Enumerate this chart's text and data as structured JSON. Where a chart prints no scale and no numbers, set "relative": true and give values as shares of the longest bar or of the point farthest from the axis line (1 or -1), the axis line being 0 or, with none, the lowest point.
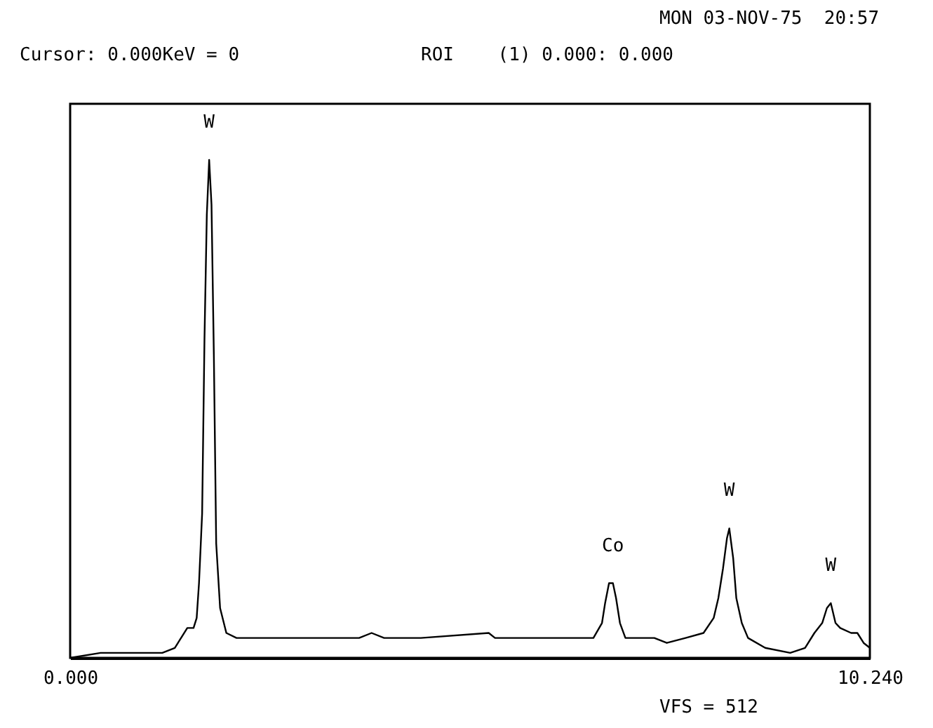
{
  "chart_data": {
    "type": "line",
    "relative": true,
    "x": [
      0,
      0.39,
      0.87,
      1.18,
      1.34,
      1.42,
      1.5,
      1.58,
      1.62,
      1.65,
      1.69,
      1.72,
      1.75,
      1.78,
      1.81,
      1.84,
      1.87,
      1.92,
      2.0,
      2.13,
      2.91,
      3.7,
      3.86,
      4.02,
      4.49,
      5.36,
      5.44,
      5.75,
      6.54,
      6.7,
      6.81,
      6.85,
      6.9,
      6.95,
      6.99,
      7.04,
      7.11,
      7.33,
      7.48,
      7.64,
      7.88,
      8.11,
      8.24,
      8.3,
      8.36,
      8.41,
      8.44,
      8.49,
      8.53,
      8.6,
      8.68,
      8.9,
      9.22,
      9.41,
      9.53,
      9.63,
      9.69,
      9.74,
      9.8,
      9.86,
      10.0,
      10.08,
      10.16,
      10.24
    ],
    "series": [
      {
        "color": "#000000",
        "values": [
          0,
          0.01,
          0.01,
          0.01,
          0.02,
          0.04,
          0.06,
          0.06,
          0.08,
          0.15,
          0.29,
          0.64,
          0.89,
          1,
          0.91,
          0.61,
          0.23,
          0.1,
          0.05,
          0.04,
          0.04,
          0.04,
          0.05,
          0.04,
          0.04,
          0.05,
          0.04,
          0.04,
          0.04,
          0.04,
          0.07,
          0.11,
          0.15,
          0.15,
          0.12,
          0.07,
          0.04,
          0.04,
          0.04,
          0.03,
          0.04,
          0.05,
          0.08,
          0.12,
          0.18,
          0.24,
          0.26,
          0.2,
          0.12,
          0.07,
          0.04,
          0.02,
          0.01,
          0.02,
          0.05,
          0.07,
          0.1,
          0.11,
          0.07,
          0.06,
          0.05,
          0.05,
          0.03,
          0.02
        ]
      }
    ],
    "xlim": [
      0,
      10.24
    ],
    "xticks": [
      {
        "value": 0,
        "label": "0.000"
      },
      {
        "value": 10.24,
        "label": "10.240"
      }
    ],
    "tick_labels": "x",
    "annotations": [
      "MON 03-NOV-75  20:57",
      "Cursor: 0.000KeV = 0",
      "ROI    (1) 0.000: 0.000",
      "VFS = 512",
      {
        "text": "W",
        "x": 1.78,
        "y": 1
      },
      {
        "text": "Co",
        "x": 6.95,
        "y": 0.15
      },
      {
        "text": "W",
        "x": 8.44,
        "y": 0.26
      },
      {
        "text": "W",
        "x": 9.74,
        "y": 0.11
      }
    ]
  }
}
